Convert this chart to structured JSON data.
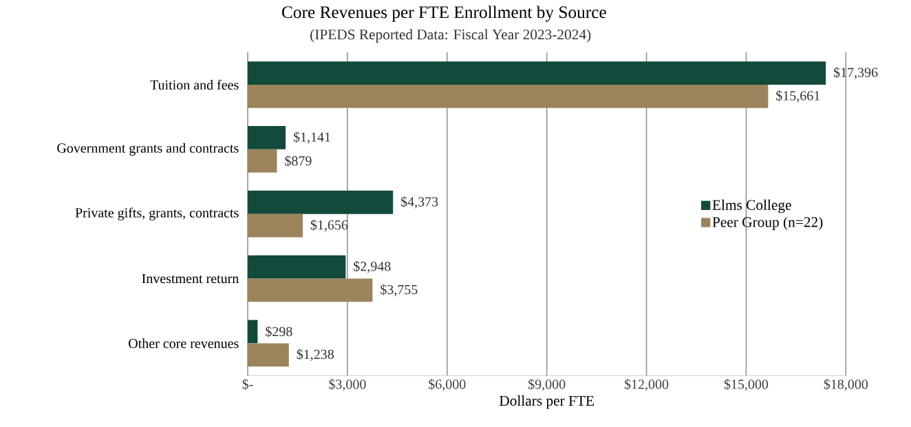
{
  "chart_data": {
    "type": "bar",
    "orientation": "horizontal",
    "title": "Core Revenues per FTE Enrollment by Source",
    "subtitle": "(IPEDS Reported Data: Fiscal Year 2023-2024)",
    "xlabel": "Dollars per FTE",
    "categories": [
      "Tuition and fees",
      "Government grants and contracts",
      "Private gifts, grants, contracts",
      "Investment return",
      "Other core revenues"
    ],
    "series": [
      {
        "name": "Elms College",
        "color": "#124a3c",
        "values": [
          17396,
          1141,
          4373,
          2948,
          298
        ],
        "value_labels": [
          "$17,396",
          "$1,141",
          "$4,373",
          "$2,948",
          "$298"
        ]
      },
      {
        "name": "Peer Group (n=22)",
        "color": "#9b845c",
        "values": [
          15661,
          879,
          1656,
          3755,
          1238
        ],
        "value_labels": [
          "$15,661",
          "$879",
          "$1,656",
          "$3,755",
          "$1,238"
        ]
      }
    ],
    "xlim": [
      0,
      18000
    ],
    "xticks": [
      {
        "value": 0,
        "label": "$-"
      },
      {
        "value": 3000,
        "label": "$3,000"
      },
      {
        "value": 6000,
        "label": "$6,000"
      },
      {
        "value": 9000,
        "label": "$9,000"
      },
      {
        "value": 12000,
        "label": "$12,000"
      },
      {
        "value": 15000,
        "label": "$15,000"
      },
      {
        "value": 18000,
        "label": "$18,000"
      }
    ],
    "grid": "x",
    "legend": "right"
  }
}
